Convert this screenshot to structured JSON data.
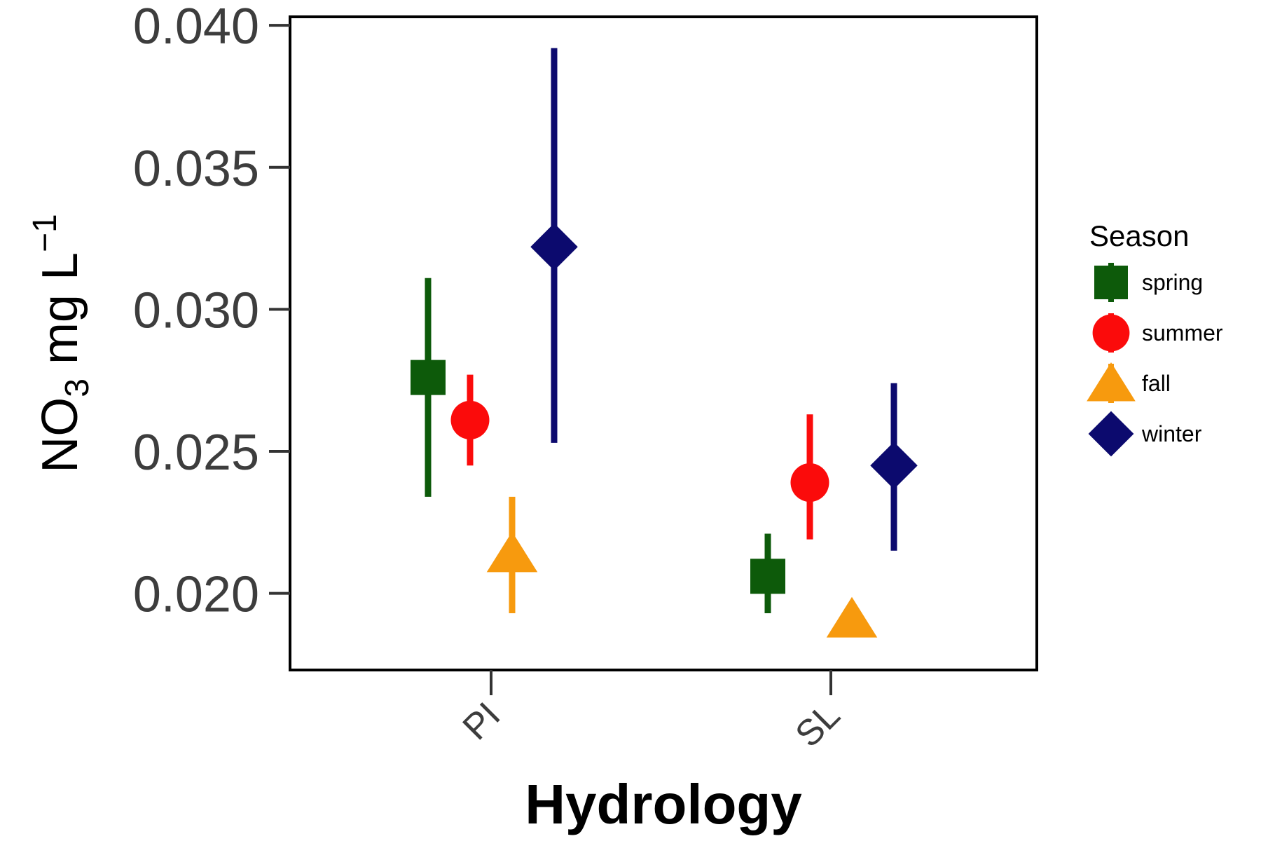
{
  "chart_data": {
    "type": "scatter",
    "xlabel": "Hydrology",
    "ylabel": {
      "base": "NO",
      "sub": "3",
      "mid": " mg L",
      "sup": "−1"
    },
    "categories": [
      "PI",
      "SL"
    ],
    "ylim": [
      0.0173,
      0.0403
    ],
    "yticks": [
      "0.020",
      "0.025",
      "0.030",
      "0.035",
      "0.040"
    ],
    "grid": false,
    "legend": {
      "title": "Season",
      "position": "right"
    },
    "series": [
      {
        "name": "spring",
        "shape": "square",
        "color": "#0d5a0a",
        "points": [
          {
            "x": "PI",
            "y": 0.0276,
            "lo": 0.0234,
            "hi": 0.0311
          },
          {
            "x": "SL",
            "y": 0.0206,
            "lo": 0.0193,
            "hi": 0.0221
          }
        ]
      },
      {
        "name": "summer",
        "shape": "circle",
        "color": "#fb0b0b",
        "points": [
          {
            "x": "PI",
            "y": 0.0261,
            "lo": 0.0245,
            "hi": 0.0277
          },
          {
            "x": "SL",
            "y": 0.0239,
            "lo": 0.0219,
            "hi": 0.0263
          }
        ]
      },
      {
        "name": "fall",
        "shape": "triangle",
        "color": "#f79a0e",
        "points": [
          {
            "x": "PI",
            "y": 0.0214,
            "lo": 0.0193,
            "hi": 0.0234
          },
          {
            "x": "SL",
            "y": 0.0191,
            "lo": 0.0191,
            "hi": 0.0191
          }
        ]
      },
      {
        "name": "winter",
        "shape": "diamond",
        "color": "#0c0a6e",
        "points": [
          {
            "x": "PI",
            "y": 0.0322,
            "lo": 0.0253,
            "hi": 0.0392
          },
          {
            "x": "SL",
            "y": 0.0245,
            "lo": 0.0215,
            "hi": 0.0274
          }
        ]
      }
    ]
  }
}
